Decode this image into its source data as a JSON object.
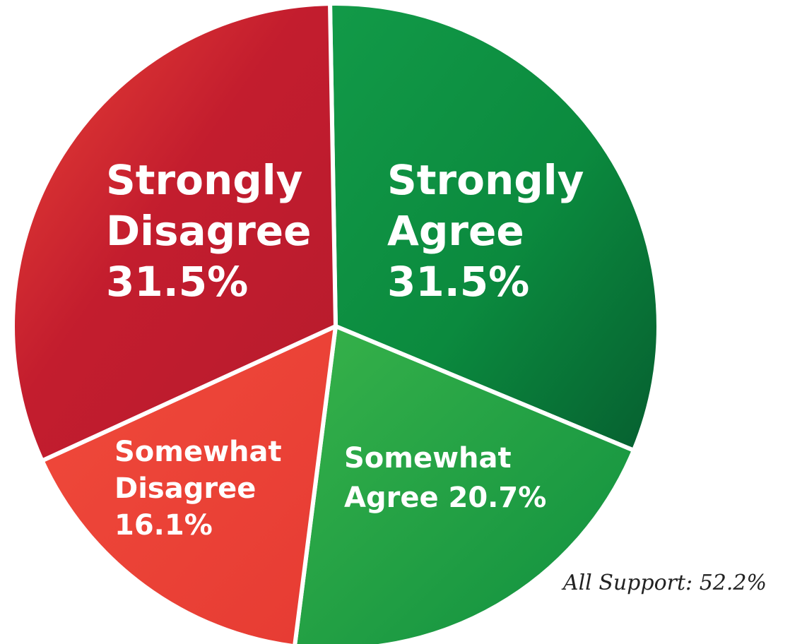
{
  "chart_data": {
    "type": "pie",
    "title": "",
    "slices": [
      {
        "label": "Strongly Agree",
        "value": 31.5,
        "color": "#0a8a3c",
        "lines": [
          "Strongly",
          "Agree",
          "31.5%"
        ]
      },
      {
        "label": "Somewhat Agree",
        "value": 20.7,
        "color": "#1f9e45",
        "lines": [
          "Somewhat",
          "Agree  20.7%"
        ]
      },
      {
        "label": "Somewhat Disagree",
        "value": 16.1,
        "color": "#ec4035",
        "lines": [
          "Somewhat",
          "Disagree",
          "16.1%"
        ]
      },
      {
        "label": "Strongly Disagree",
        "value": 31.5,
        "color": "#c8202e",
        "lines": [
          "Strongly",
          "Disagree",
          "31.5%"
        ]
      }
    ],
    "annotation": "All Support: 52.2%"
  }
}
